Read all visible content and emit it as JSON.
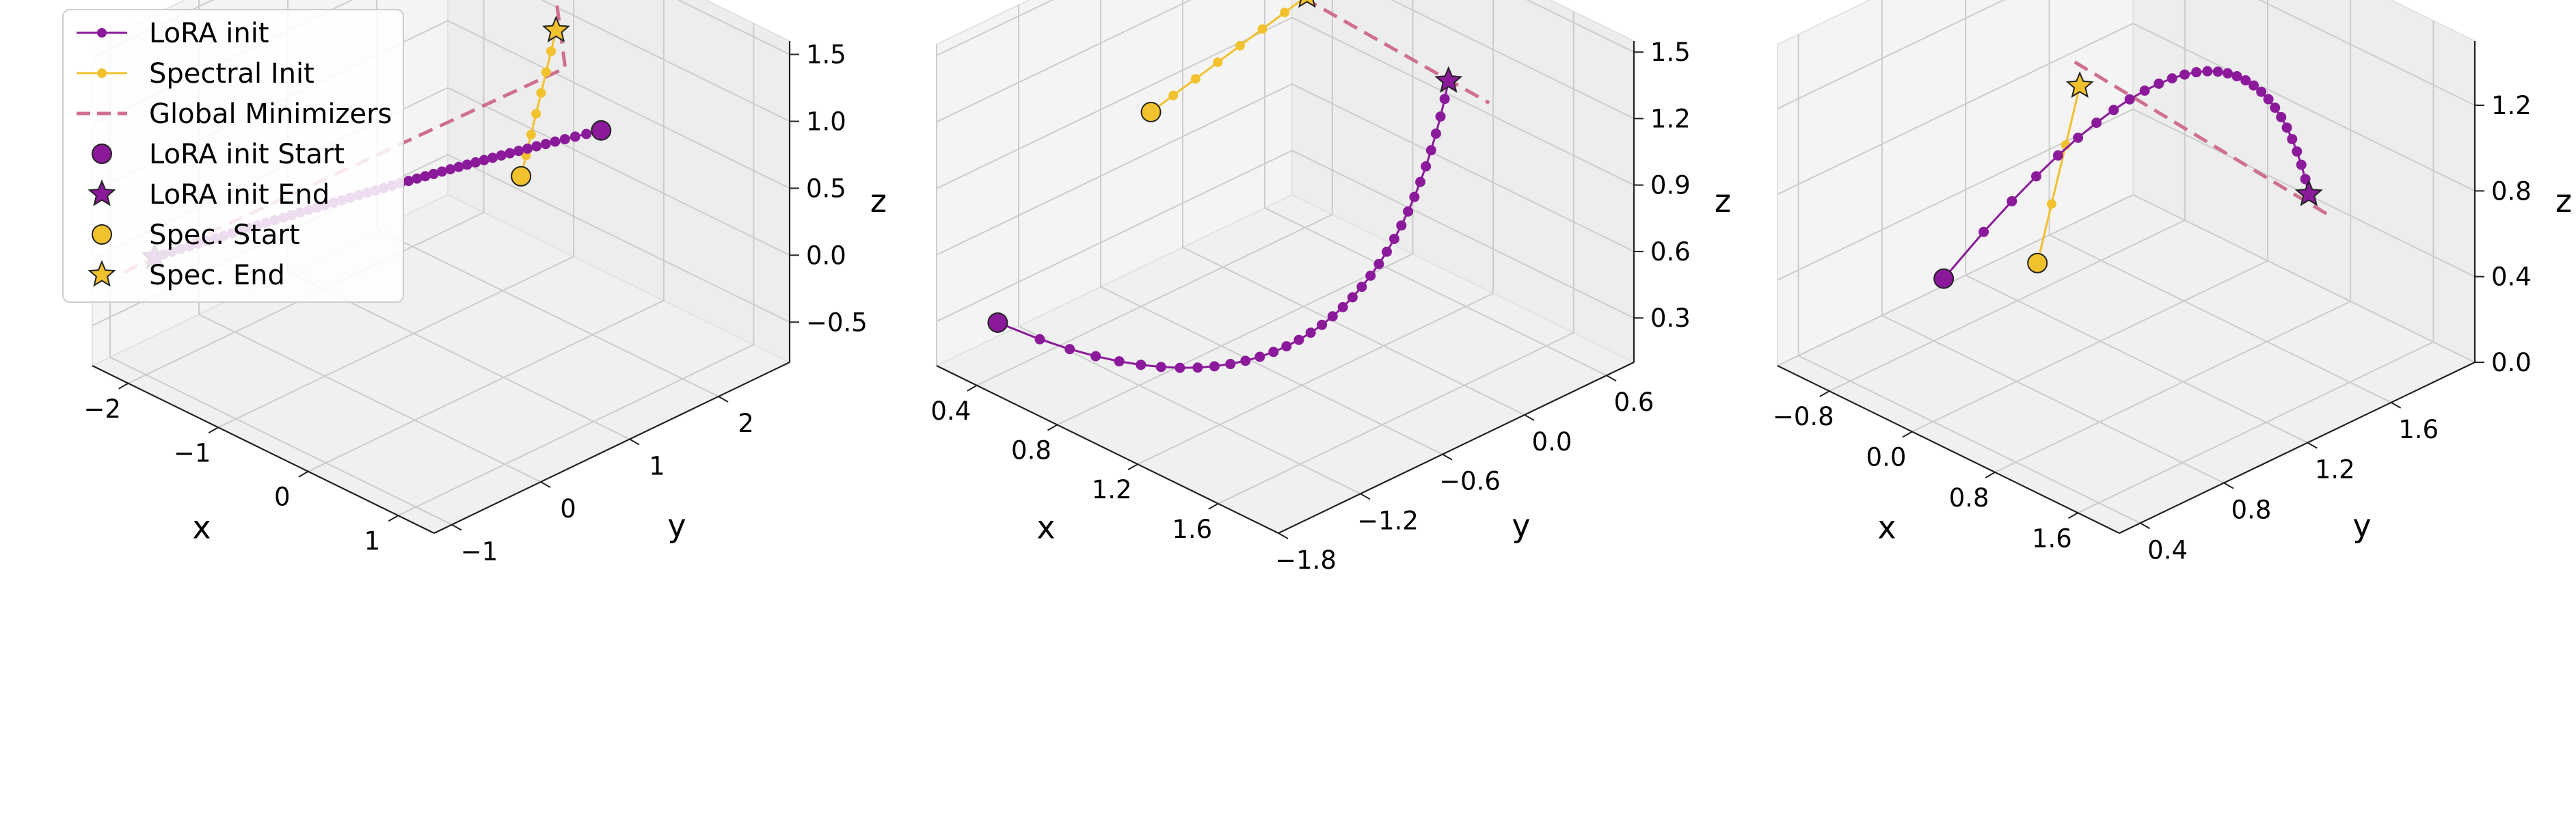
{
  "chart_data": {
    "type": "line",
    "subtype": "3d-trajectory",
    "colors": {
      "lora": "#8b1a9b",
      "spectral": "#f2c12e",
      "minimizer": "#cf6f8f",
      "pane": "#f2f2f2",
      "grid": "#cccccc"
    },
    "legend": {
      "position": "top-left",
      "entries": [
        {
          "label": "LoRA init",
          "kind": "line-dot",
          "color": "#8b1a9b"
        },
        {
          "label": "Spectral Init",
          "kind": "line-dot",
          "color": "#f2c12e"
        },
        {
          "label": "Global Minimizers",
          "kind": "dashed",
          "color": "#cf6f8f"
        },
        {
          "label": "LoRA init Start",
          "kind": "circle",
          "color": "#8b1a9b"
        },
        {
          "label": "LoRA init End",
          "kind": "star",
          "color": "#8b1a9b"
        },
        {
          "label": "Spec. Start",
          "kind": "circle",
          "color": "#f2c12e"
        },
        {
          "label": "Spec. End",
          "kind": "star",
          "color": "#f2c12e"
        }
      ]
    },
    "panels": [
      {
        "xlabel": "x",
        "ylabel": "y",
        "zlabel": "z",
        "xlim": [
          -2.4,
          1.4
        ],
        "ylim": [
          -1.2,
          2.8
        ],
        "zlim": [
          -0.8,
          1.6
        ],
        "xticks": [
          {
            "v": -2,
            "t": "−2"
          },
          {
            "v": -1,
            "t": "−1"
          },
          {
            "v": 0,
            "t": "0"
          },
          {
            "v": 1,
            "t": "1"
          }
        ],
        "yticks": [
          {
            "v": -1,
            "t": "−1"
          },
          {
            "v": 0,
            "t": "0"
          },
          {
            "v": 1,
            "t": "1"
          },
          {
            "v": 2,
            "t": "2"
          }
        ],
        "zticks": [
          {
            "v": -0.5,
            "t": "−0.5"
          },
          {
            "v": 0,
            "t": "0.0"
          },
          {
            "v": 0.5,
            "t": "0.5"
          },
          {
            "v": 1.0,
            "t": "1.0"
          },
          {
            "v": 1.5,
            "t": "1.5"
          }
        ],
        "lora": {
          "start": [
            -0.3,
            2.4,
            0.5
          ],
          "end": [
            -2.15,
            -0.75,
            -0.05
          ],
          "control": [
            -0.7,
            0.9,
            0.55
          ],
          "n": 52
        },
        "spectral": {
          "start": [
            -0.4,
            1.6,
            0.38
          ],
          "end": [
            -0.85,
            2.45,
            1.05
          ],
          "n": 8
        },
        "minimizers": [
          [
            -2.3,
            -0.95,
            -0.15
          ],
          [
            -0.6,
            2.3,
            0.9
          ],
          [
            -1.0,
            2.6,
            1.2
          ]
        ]
      },
      {
        "xlabel": "x",
        "ylabel": "y",
        "zlabel": "z",
        "xlim": [
          0.2,
          1.9
        ],
        "ylim": [
          -1.8,
          0.8
        ],
        "zlim": [
          0.1,
          1.55
        ],
        "xticks": [
          {
            "v": 0.4,
            "t": "0.4"
          },
          {
            "v": 0.8,
            "t": "0.8"
          },
          {
            "v": 1.2,
            "t": "1.2"
          },
          {
            "v": 1.6,
            "t": "1.6"
          }
        ],
        "yticks": [
          {
            "v": -1.8,
            "t": "−1.8"
          },
          {
            "v": -1.2,
            "t": "−1.2"
          },
          {
            "v": -0.6,
            "t": "−0.6"
          },
          {
            "v": 0,
            "t": "0.0"
          },
          {
            "v": 0.6,
            "t": "0.6"
          }
        ],
        "zticks": [
          {
            "v": 0.3,
            "t": "0.3"
          },
          {
            "v": 0.6,
            "t": "0.6"
          },
          {
            "v": 0.9,
            "t": "0.9"
          },
          {
            "v": 1.2,
            "t": "1.2"
          },
          {
            "v": 1.5,
            "t": "1.5"
          }
        ],
        "lora": {
          "start": [
            0.3,
            -1.5,
            0.25
          ],
          "end": [
            1.25,
            0.4,
            1.2
          ],
          "control": [
            1.8,
            -1.0,
            0.05
          ],
          "n": 36
        },
        "spectral": {
          "start": [
            0.45,
            -0.6,
            1.0
          ],
          "end": [
            0.75,
            0.1,
            1.45
          ],
          "n": 8
        },
        "minimizers": [
          [
            0.7,
            0.0,
            1.5
          ],
          [
            1.35,
            0.55,
            1.1
          ]
        ]
      },
      {
        "xlabel": "x",
        "ylabel": "y",
        "zlabel": "z",
        "xlim": [
          -1.3,
          2.0
        ],
        "ylim": [
          0.3,
          2.0
        ],
        "zlim": [
          0.0,
          1.5
        ],
        "xticks": [
          {
            "v": -0.8,
            "t": "−0.8"
          },
          {
            "v": 0.0,
            "t": "0.0"
          },
          {
            "v": 0.8,
            "t": "0.8"
          },
          {
            "v": 1.6,
            "t": "1.6"
          }
        ],
        "yticks": [
          {
            "v": 0.4,
            "t": "0.4"
          },
          {
            "v": 0.8,
            "t": "0.8"
          },
          {
            "v": 1.2,
            "t": "1.2"
          },
          {
            "v": 1.6,
            "t": "1.6"
          }
        ],
        "zticks": [
          {
            "v": 0.0,
            "t": "0.0"
          },
          {
            "v": 0.4,
            "t": "0.4"
          },
          {
            "v": 0.8,
            "t": "0.8"
          },
          {
            "v": 1.2,
            "t": "1.2"
          }
        ],
        "lora": {
          "start": [
            -0.2,
            0.55,
            0.55
          ],
          "end": [
            0.6,
            1.9,
            0.5
          ],
          "control": [
            -0.8,
            2.3,
            1.3
          ],
          "n": 30,
          "curl": true
        },
        "spectral": {
          "start": [
            0.2,
            0.8,
            0.6
          ],
          "end": [
            -0.4,
            1.3,
            1.05
          ],
          "n": 4
        },
        "minimizers": [
          [
            -0.45,
            1.3,
            1.15
          ],
          [
            0.7,
            1.95,
            0.4
          ]
        ]
      }
    ]
  }
}
